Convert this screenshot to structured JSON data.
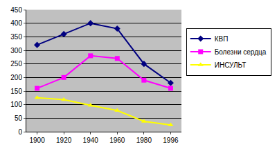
{
  "chart_data": {
    "type": "line",
    "categories": [
      "1900",
      "1920",
      "1940",
      "1960",
      "1980",
      "1996"
    ],
    "series": [
      {
        "name": "КВП",
        "color": "#000080",
        "marker": "diamond",
        "values": [
          320,
          360,
          400,
          380,
          250,
          180
        ]
      },
      {
        "name": "Болезни сердца",
        "color": "#ff00ff",
        "marker": "square",
        "values": [
          160,
          200,
          280,
          270,
          190,
          160
        ]
      },
      {
        "name": "ИНСУЛЬТ",
        "color": "#ffff00",
        "marker": "triangle",
        "values": [
          125,
          118,
          97,
          78,
          38,
          25
        ]
      }
    ],
    "ylim": [
      0,
      450
    ],
    "yticks": [
      0,
      50,
      100,
      150,
      200,
      250,
      300,
      350,
      400,
      450
    ],
    "grid": true,
    "legend": "right"
  }
}
